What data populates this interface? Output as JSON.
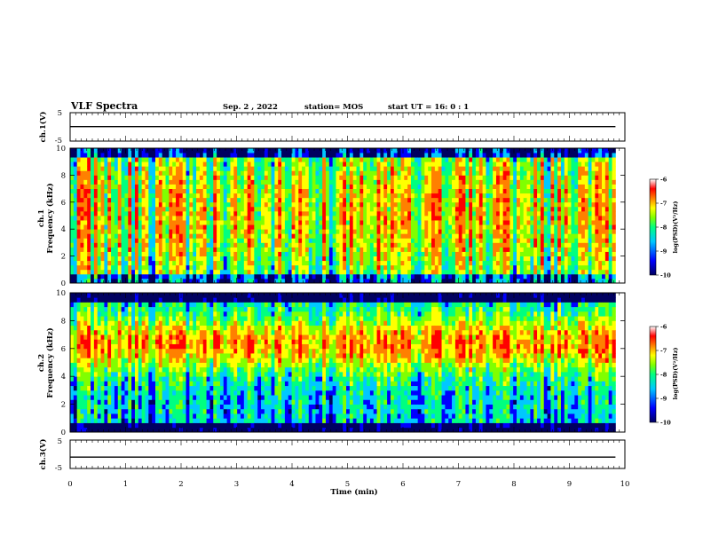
{
  "header": {
    "title": "VLF Spectra",
    "date": "Sep. 2 , 2022",
    "station": "station= MOS",
    "start": "start  UT  =   16: 0  : 1"
  },
  "chart_data": [
    {
      "type": "line",
      "panel": "ch1-waveform",
      "ylabel": "ch.1(V)",
      "ylim": [
        -5,
        5
      ],
      "yticks": [
        "5",
        "-5"
      ],
      "xlim": [
        0,
        10
      ],
      "series": [
        {
          "x": [
            0,
            9.83
          ],
          "y": [
            0.1,
            0.1
          ]
        }
      ]
    },
    {
      "type": "heatmap",
      "panel": "ch1-spectrogram",
      "ylabel": "Frequency (kHz)",
      "channel_label": "ch.1",
      "ylim": [
        0,
        10
      ],
      "yticks": [
        "0",
        "2",
        "4",
        "6",
        "8",
        "10"
      ],
      "xlim": [
        0,
        10
      ],
      "data_xmax": 9.83,
      "colorbar": {
        "label": "log(PSD)(V²/Hz)",
        "range": [
          -10,
          -6
        ],
        "ticks": [
          "-6",
          "-7",
          "-8",
          "-9",
          "-10"
        ]
      }
    },
    {
      "type": "heatmap",
      "panel": "ch2-spectrogram",
      "ylabel": "Frequency (kHz)",
      "channel_label": "ch.2",
      "ylim": [
        0,
        10
      ],
      "yticks": [
        "0",
        "2",
        "4",
        "6",
        "8",
        "10"
      ],
      "xlim": [
        0,
        10
      ],
      "data_xmax": 9.83,
      "colorbar": {
        "label": "log(PSD)(V²/Hz)",
        "range": [
          -10,
          -6
        ],
        "ticks": [
          "-6",
          "-7",
          "-8",
          "-9",
          "-10"
        ]
      }
    },
    {
      "type": "line",
      "panel": "ch3-waveform",
      "ylabel": "ch.3(V)",
      "ylim": [
        -5,
        5
      ],
      "yticks": [
        "5",
        "-5"
      ],
      "xlim": [
        0,
        10
      ],
      "series": [
        {
          "x": [
            0,
            9.83
          ],
          "y": [
            -1,
            -1
          ]
        }
      ]
    }
  ],
  "xaxis": {
    "label": "Time  (min)",
    "ticks": [
      "0",
      "1",
      "2",
      "3",
      "4",
      "5",
      "6",
      "7",
      "8",
      "9",
      "10"
    ]
  },
  "colors": {
    "colormap": [
      "#000060",
      "#0000ff",
      "#00c8ff",
      "#00ff80",
      "#80ff00",
      "#ffff00",
      "#ff8000",
      "#ff0000",
      "#ffffff"
    ]
  }
}
